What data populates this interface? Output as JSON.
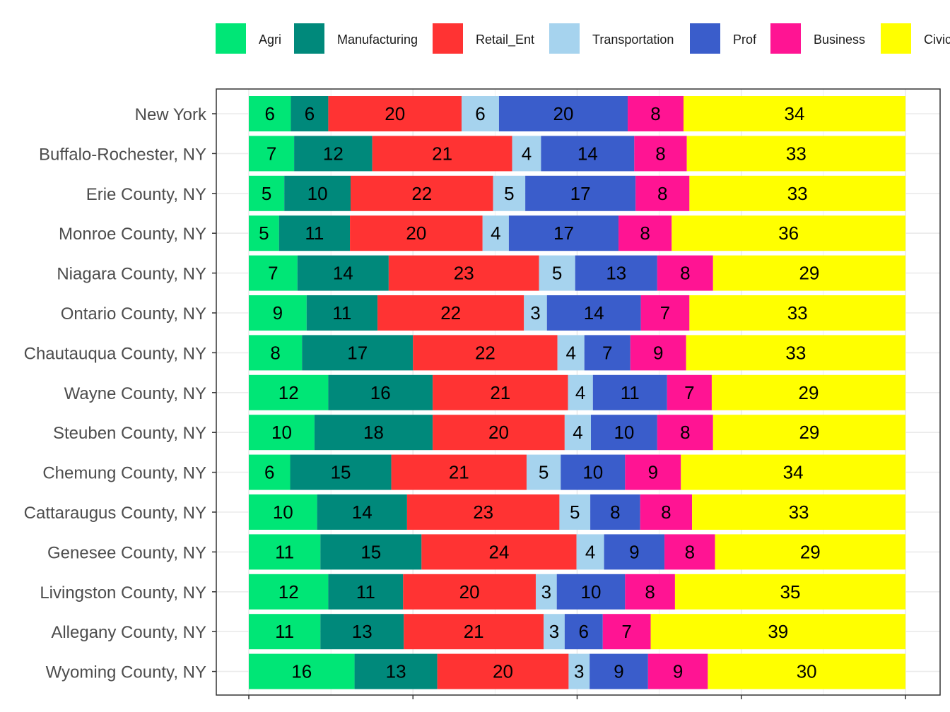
{
  "chart_data": {
    "type": "bar",
    "orientation": "horizontal",
    "stacked": true,
    "title": "",
    "xlabel": "",
    "ylabel": "",
    "legend_position": "top",
    "grid": true,
    "xlim": [
      0,
      100
    ],
    "categories": [
      "New York",
      "Buffalo-Rochester, NY",
      "Erie County, NY",
      "Monroe County, NY",
      "Niagara County, NY",
      "Ontario County, NY",
      "Chautauqua County, NY",
      "Wayne County, NY",
      "Steuben County, NY",
      "Chemung County, NY",
      "Cattaraugus County, NY",
      "Genesee County, NY",
      "Livingston County, NY",
      "Allegany County, NY",
      "Wyoming County, NY"
    ],
    "series": [
      {
        "name": "Agri",
        "color": "#00E676",
        "values": [
          6.4,
          6.9,
          5.4,
          4.6,
          7.4,
          8.8,
          8.1,
          12.1,
          10.0,
          6.3,
          10.4,
          10.9,
          12.1,
          10.9,
          16.1
        ]
      },
      {
        "name": "Manufacturing",
        "color": "#00897B",
        "values": [
          5.7,
          11.9,
          10.1,
          10.8,
          13.9,
          10.8,
          16.9,
          15.9,
          18.0,
          15.4,
          13.7,
          15.4,
          11.4,
          12.7,
          12.6
        ]
      },
      {
        "name": "Retail_Ent",
        "color": "#FF3333",
        "values": [
          20.3,
          21.3,
          21.7,
          20.2,
          22.9,
          22.3,
          22.0,
          20.6,
          20.1,
          20.6,
          23.2,
          23.6,
          20.2,
          21.3,
          20.0
        ]
      },
      {
        "name": "Transportation",
        "color": "#A6D3EE",
        "values": [
          5.7,
          4.4,
          4.9,
          4.0,
          5.5,
          3.5,
          4.1,
          3.8,
          4.0,
          5.2,
          4.7,
          4.2,
          3.2,
          3.2,
          3.2
        ]
      },
      {
        "name": "Prof",
        "color": "#3A5DCB",
        "values": [
          19.6,
          14.2,
          16.8,
          16.7,
          12.5,
          14.3,
          7.0,
          11.3,
          10.1,
          9.8,
          7.6,
          9.2,
          10.4,
          5.8,
          8.9
        ]
      },
      {
        "name": "Business",
        "color": "#FF1493",
        "values": [
          8.5,
          8.0,
          8.2,
          8.1,
          8.5,
          7.4,
          8.5,
          6.8,
          8.5,
          8.5,
          7.9,
          7.7,
          7.6,
          7.3,
          9.1
        ]
      },
      {
        "name": "Civic",
        "color": "#FFFF00",
        "values": [
          33.8,
          33.3,
          32.9,
          35.6,
          29.3,
          32.9,
          33.4,
          29.5,
          29.3,
          34.2,
          32.5,
          29.0,
          35.1,
          38.8,
          30.1
        ]
      }
    ],
    "series_labels": {
      "Agri": [
        6,
        7,
        5,
        5,
        7,
        9,
        8,
        12,
        10,
        6,
        10,
        11,
        12,
        11,
        16
      ],
      "Manufacturing": [
        6,
        12,
        10,
        11,
        14,
        11,
        17,
        16,
        18,
        15,
        14,
        15,
        11,
        13,
        13
      ],
      "Retail_Ent": [
        20,
        21,
        22,
        20,
        23,
        22,
        22,
        21,
        20,
        21,
        23,
        24,
        20,
        21,
        20
      ],
      "Transportation": [
        6,
        4,
        5,
        4,
        5,
        3,
        4,
        4,
        4,
        5,
        5,
        4,
        3,
        3,
        3
      ],
      "Prof": [
        20,
        14,
        17,
        17,
        13,
        14,
        7,
        11,
        10,
        10,
        8,
        9,
        10,
        6,
        9
      ],
      "Business": [
        8,
        8,
        8,
        8,
        8,
        7,
        9,
        7,
        8,
        9,
        8,
        8,
        8,
        7,
        9
      ],
      "Civic": [
        34,
        33,
        33,
        36,
        29,
        33,
        33,
        29,
        29,
        34,
        33,
        29,
        35,
        39,
        30
      ]
    },
    "legend": [
      "Agri",
      "Manufacturing",
      "Retail_Ent",
      "Transportation",
      "Prof",
      "Business",
      "Civic"
    ]
  }
}
